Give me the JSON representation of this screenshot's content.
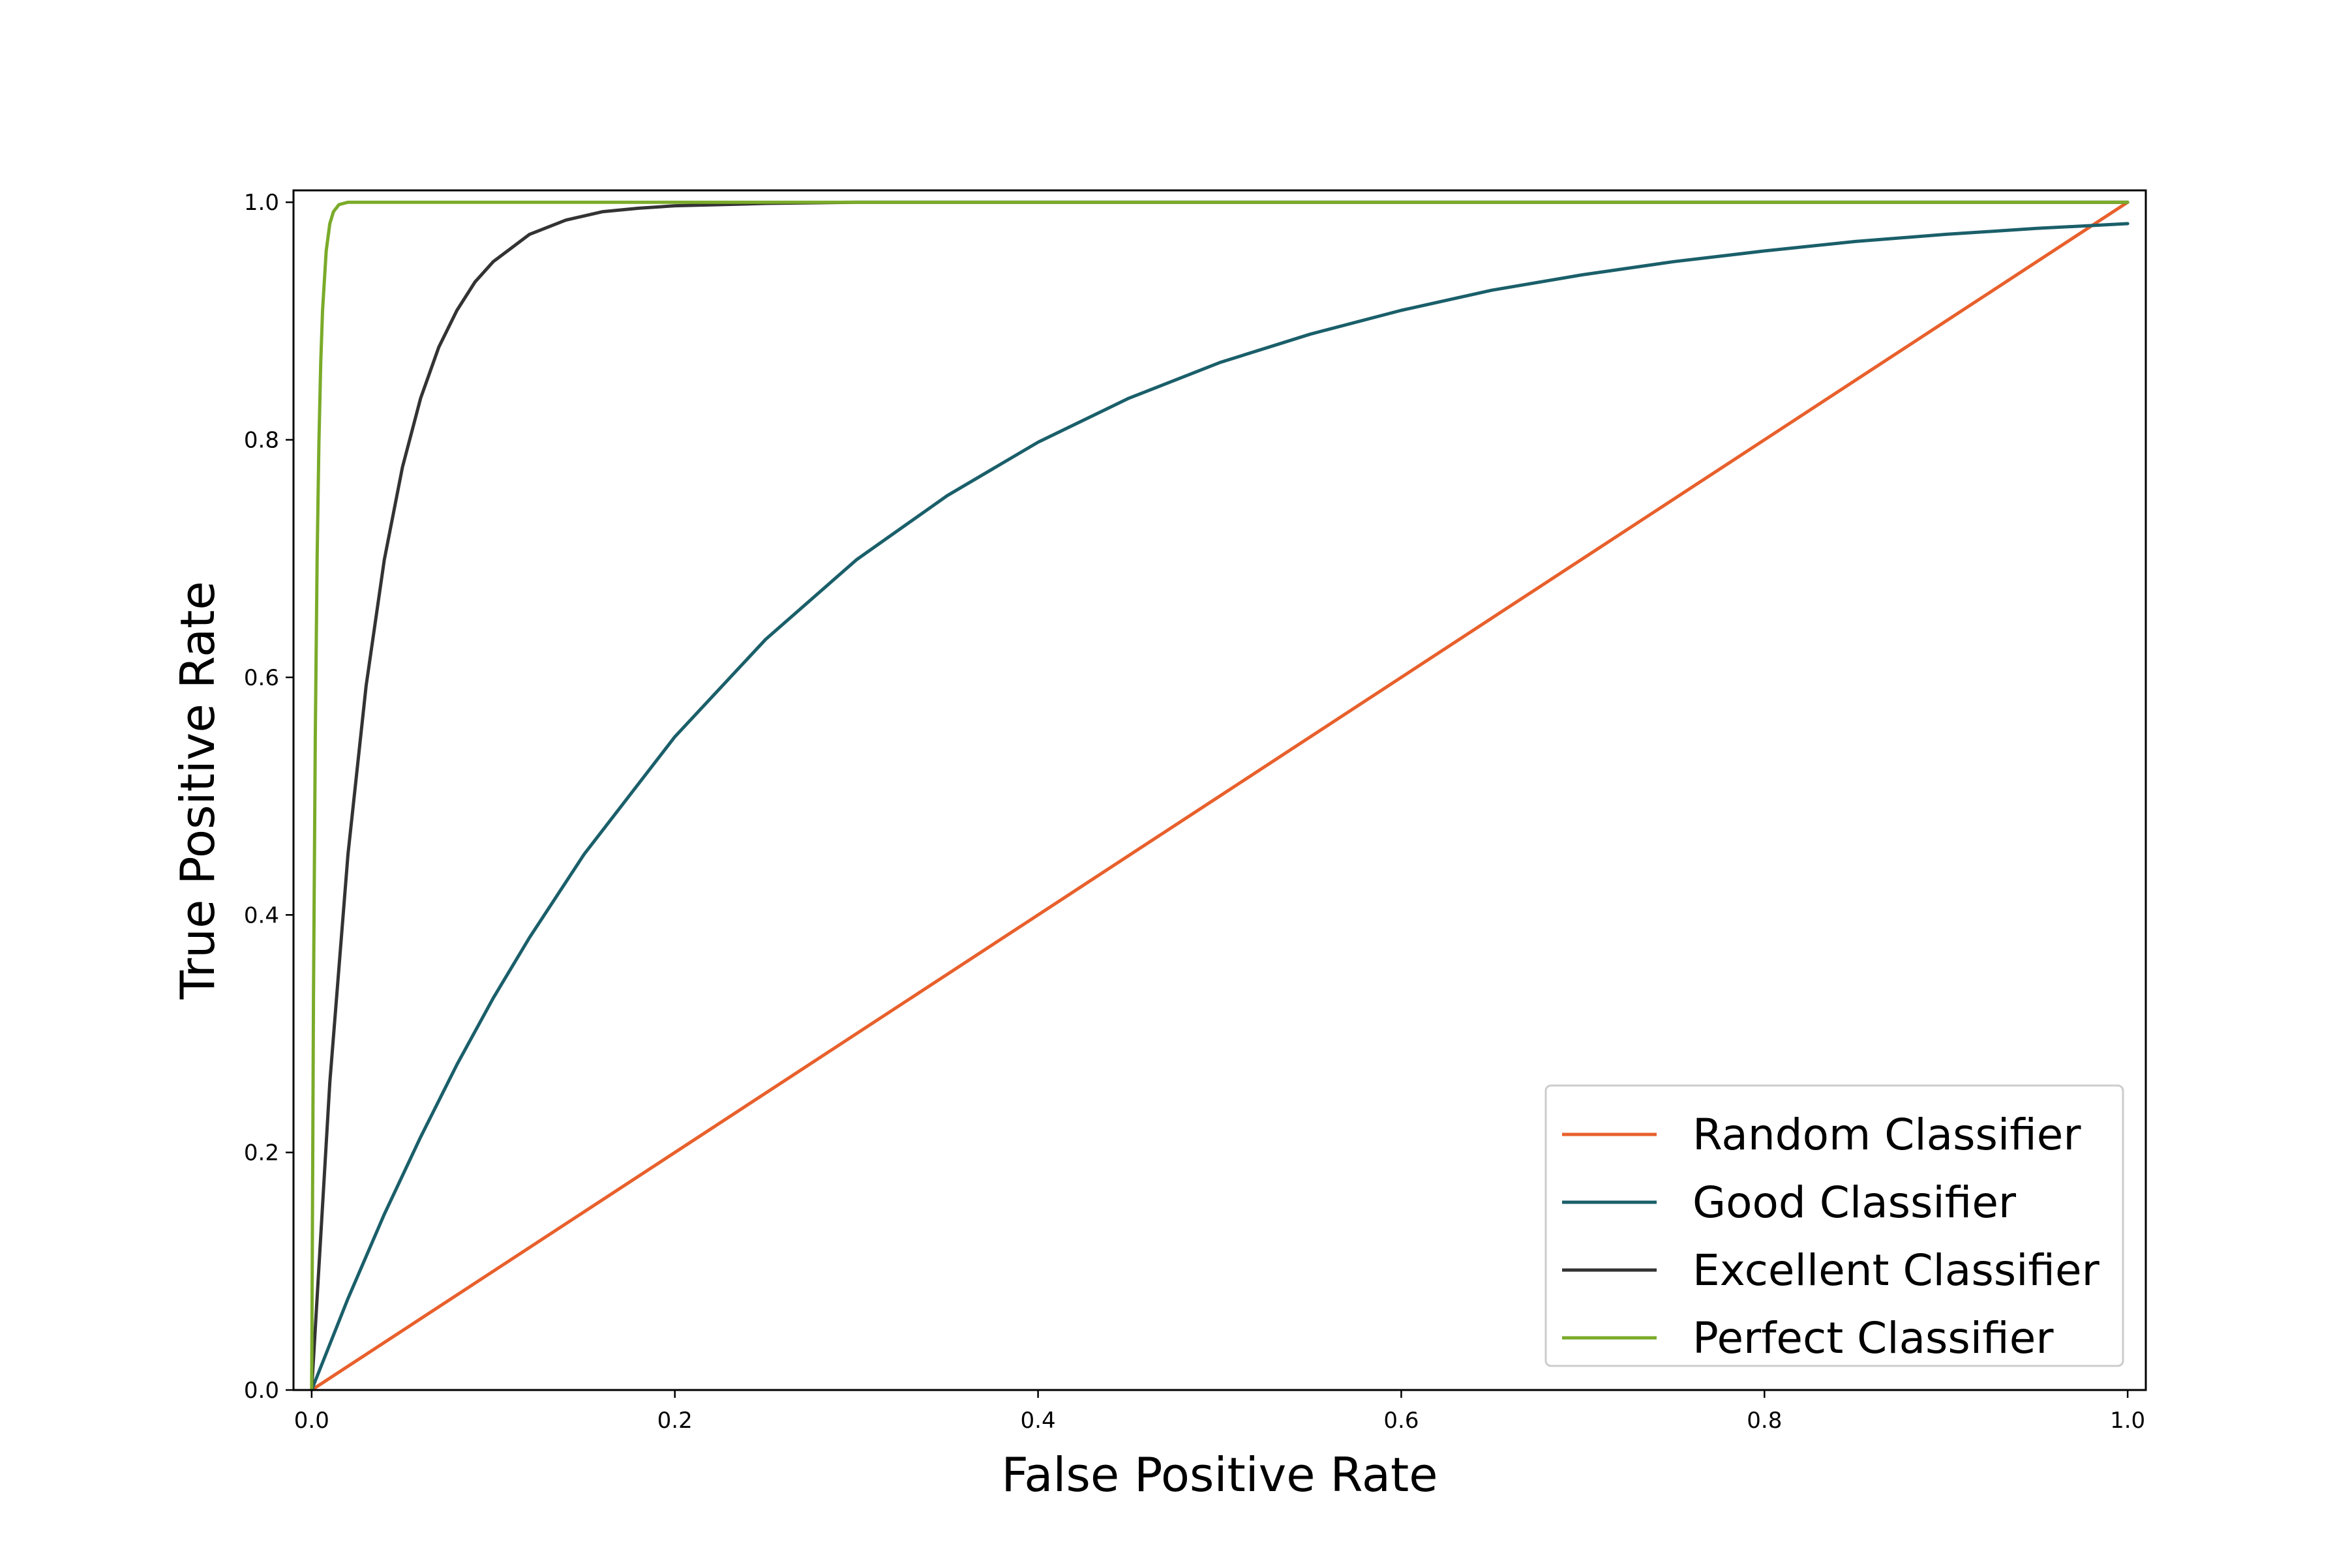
{
  "chart_data": {
    "type": "line",
    "title": "",
    "xlabel": "False Positive Rate",
    "ylabel": "True Positive Rate",
    "xlim": [
      -0.01,
      1.01
    ],
    "ylim": [
      0.0,
      1.01
    ],
    "grid": false,
    "legend_position": "bottom-right",
    "x_ticks": [
      {
        "value": 0.0,
        "label": "0.0"
      },
      {
        "value": 0.2,
        "label": "0.2"
      },
      {
        "value": 0.4,
        "label": "0.4"
      },
      {
        "value": 0.6,
        "label": "0.6"
      },
      {
        "value": 0.8,
        "label": "0.8"
      },
      {
        "value": 1.0,
        "label": "1.0"
      }
    ],
    "y_ticks": [
      {
        "value": 0.0,
        "label": "0.0"
      },
      {
        "value": 0.2,
        "label": "0.2"
      },
      {
        "value": 0.4,
        "label": "0.4"
      },
      {
        "value": 0.6,
        "label": "0.6"
      },
      {
        "value": 0.8,
        "label": "0.8"
      },
      {
        "value": 1.0,
        "label": "1.0"
      }
    ],
    "series": [
      {
        "name": "Random Classifier",
        "color": "#e8602c",
        "x": [
          0,
          0.1,
          0.2,
          0.3,
          0.4,
          0.5,
          0.6,
          0.7,
          0.8,
          0.9,
          1.0
        ],
        "y": [
          0,
          0.1,
          0.2,
          0.3,
          0.4,
          0.5,
          0.6,
          0.7,
          0.8,
          0.9,
          1.0
        ]
      },
      {
        "name": "Good Classifier",
        "color": "#1a5f6a",
        "x": [
          0,
          0.02,
          0.04,
          0.06,
          0.08,
          0.1,
          0.12,
          0.15,
          0.2,
          0.25,
          0.3,
          0.35,
          0.4,
          0.45,
          0.5,
          0.55,
          0.6,
          0.65,
          0.7,
          0.75,
          0.8,
          0.85,
          0.9,
          0.95,
          1.0
        ],
        "y": [
          0,
          0.077,
          0.148,
          0.213,
          0.274,
          0.33,
          0.381,
          0.451,
          0.55,
          0.632,
          0.699,
          0.753,
          0.798,
          0.835,
          0.865,
          0.889,
          0.909,
          0.926,
          0.939,
          0.95,
          0.959,
          0.967,
          0.973,
          0.978,
          0.982
        ]
      },
      {
        "name": "Excellent Classifier",
        "color": "#333333",
        "x": [
          0,
          0.01,
          0.02,
          0.03,
          0.04,
          0.05,
          0.06,
          0.07,
          0.08,
          0.09,
          0.1,
          0.12,
          0.14,
          0.16,
          0.18,
          0.2,
          0.25,
          0.3,
          0.35,
          0.4,
          0.5,
          0.6,
          0.8,
          1.0
        ],
        "y": [
          0,
          0.259,
          0.451,
          0.593,
          0.699,
          0.777,
          0.835,
          0.878,
          0.909,
          0.933,
          0.95,
          0.973,
          0.985,
          0.992,
          0.995,
          0.997,
          0.999,
          1.0,
          1.0,
          1.0,
          1.0,
          1.0,
          1.0,
          1.0
        ]
      },
      {
        "name": "Perfect Classifier",
        "color": "#7aab2a",
        "x": [
          0,
          0.001,
          0.002,
          0.003,
          0.004,
          0.005,
          0.006,
          0.008,
          0.01,
          0.012,
          0.015,
          0.02,
          0.05,
          0.2,
          0.5,
          0.8,
          1.0
        ],
        "y": [
          0,
          0.33,
          0.55,
          0.699,
          0.798,
          0.865,
          0.909,
          0.959,
          0.982,
          0.992,
          0.998,
          1.0,
          1.0,
          1.0,
          1.0,
          1.0,
          1.0
        ]
      }
    ]
  }
}
